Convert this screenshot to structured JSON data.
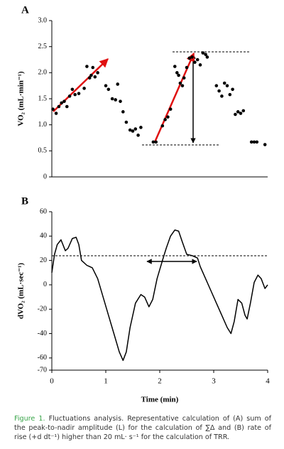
{
  "chart_data": [
    {
      "type": "scatter",
      "panel": "A",
      "ylabel": "VO₂ (mL·min⁻¹)",
      "color": "#000000",
      "x": [
        0.02,
        0.08,
        0.13,
        0.18,
        0.23,
        0.28,
        0.33,
        0.38,
        0.43,
        0.5,
        0.6,
        0.65,
        0.7,
        0.73,
        0.76,
        0.8,
        0.85,
        1.0,
        1.05,
        1.12,
        1.18,
        1.22,
        1.27,
        1.32,
        1.38,
        1.45,
        1.5,
        1.55,
        1.6,
        1.65,
        1.88,
        1.93,
        2.05,
        2.1,
        2.15,
        2.2,
        2.28,
        2.32,
        2.35,
        2.38,
        2.42,
        2.45,
        2.5,
        2.55,
        2.6,
        2.65,
        2.7,
        2.75,
        2.8,
        2.85,
        2.88,
        3.05,
        3.1,
        3.15,
        3.2,
        3.25,
        3.3,
        3.35,
        3.4,
        3.45,
        3.5,
        3.55,
        3.7,
        3.75,
        3.8,
        3.95
      ],
      "values": [
        1.3,
        1.22,
        1.35,
        1.42,
        1.45,
        1.35,
        1.55,
        1.68,
        1.58,
        1.6,
        1.7,
        2.12,
        1.9,
        1.95,
        2.1,
        1.92,
        2.0,
        1.75,
        1.68,
        1.5,
        1.48,
        1.78,
        1.45,
        1.25,
        1.05,
        0.9,
        0.88,
        0.92,
        0.8,
        0.95,
        0.67,
        0.67,
        0.98,
        1.1,
        1.15,
        1.3,
        2.12,
        2.0,
        1.95,
        1.8,
        1.75,
        1.9,
        2.1,
        2.28,
        2.3,
        2.2,
        2.25,
        2.15,
        2.38,
        2.35,
        2.3,
        1.75,
        1.65,
        1.55,
        1.8,
        1.75,
        1.58,
        1.68,
        1.2,
        1.25,
        1.22,
        1.27,
        0.67,
        0.67,
        0.67,
        0.62
      ],
      "xlim": [
        0,
        4
      ],
      "ylim": [
        0,
        3
      ],
      "yticks": [
        0,
        0.5,
        {
          "value": 1,
          "label": "1.0"
        },
        1.5,
        {
          "value": 2,
          "label": "2.0"
        },
        2.5,
        {
          "value": 3,
          "label": "3.0"
        }
      ]
    },
    {
      "type": "line",
      "panel": "B",
      "ylabel": "dVO₂ (mL·sec⁻¹)",
      "xlabel": "Time (min)",
      "color": "#000000",
      "x": [
        0,
        0.05,
        0.1,
        0.17,
        0.25,
        0.3,
        0.38,
        0.45,
        0.5,
        0.55,
        0.65,
        0.75,
        0.85,
        0.95,
        1.05,
        1.15,
        1.25,
        1.32,
        1.38,
        1.45,
        1.55,
        1.65,
        1.72,
        1.8,
        1.87,
        1.95,
        2.05,
        2.12,
        2.2,
        2.28,
        2.35,
        2.42,
        2.5,
        2.6,
        2.7,
        2.75,
        2.85,
        2.95,
        3.05,
        3.15,
        3.25,
        3.32,
        3.38,
        3.45,
        3.52,
        3.58,
        3.62,
        3.68,
        3.75,
        3.82,
        3.88,
        3.95,
        4
      ],
      "values": [
        10,
        25,
        33,
        37,
        28,
        30,
        38,
        39,
        33,
        20,
        16,
        14,
        5,
        -10,
        -25,
        -40,
        -55,
        -62,
        -55,
        -35,
        -15,
        -8,
        -10,
        -18,
        -12,
        5,
        20,
        30,
        40,
        45,
        44,
        35,
        25,
        24,
        22,
        15,
        5,
        -5,
        -15,
        -25,
        -35,
        -40,
        -30,
        -12,
        -15,
        -25,
        -28,
        -15,
        2,
        8,
        5,
        -3,
        0
      ],
      "xlim": [
        0,
        4
      ],
      "ylim": [
        -70,
        60
      ],
      "xticks": [
        0,
        1,
        2,
        3,
        4
      ],
      "yticks": [
        -70,
        -60,
        -40,
        -20,
        0,
        20,
        40,
        60
      ]
    }
  ],
  "caption": {
    "label": "Figure 1.",
    "text": "Fluctuations analysis. Representative calculation of (A) sum of the peak-to-nadir amplitude (L) for the calculation of ∑Δ and (B) rate of rise (+d dt⁻¹) higher than 20 mL· s⁻¹ for the calculation of TRR."
  }
}
